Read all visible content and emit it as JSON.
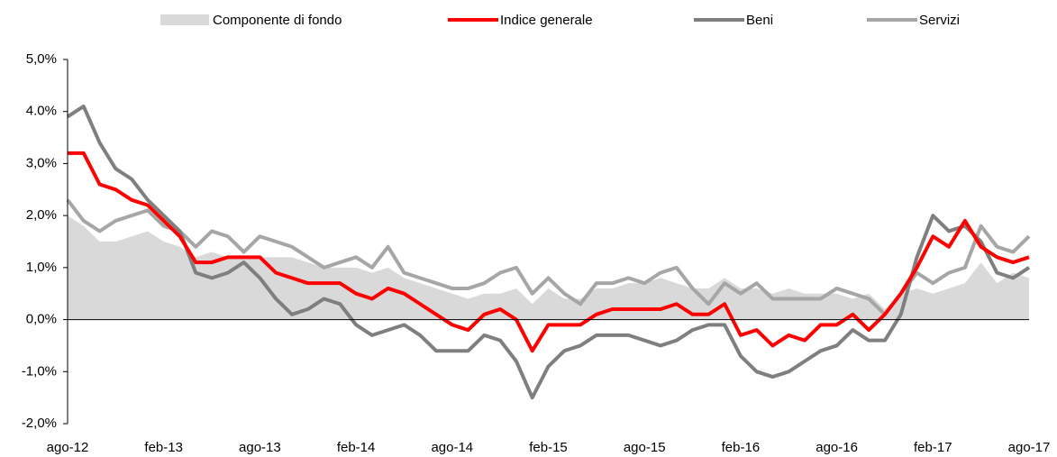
{
  "chart_data": {
    "type": "line",
    "categories": [
      "ago-12",
      null,
      null,
      null,
      null,
      null,
      "feb-13",
      null,
      null,
      null,
      null,
      null,
      "ago-13",
      null,
      null,
      null,
      null,
      null,
      "feb-14",
      null,
      null,
      null,
      null,
      null,
      "ago-14",
      null,
      null,
      null,
      null,
      null,
      "feb-15",
      null,
      null,
      null,
      null,
      null,
      "ago-15",
      null,
      null,
      null,
      null,
      null,
      "feb-16",
      null,
      null,
      null,
      null,
      null,
      "ago-16",
      null,
      null,
      null,
      null,
      null,
      "feb-17",
      null,
      null,
      null,
      null,
      null,
      "ago-17"
    ],
    "series": [
      {
        "name": "Componente di fondo",
        "color": "#d9d9d9",
        "kind": "area",
        "values": [
          2.0,
          1.8,
          1.5,
          1.5,
          1.6,
          1.7,
          1.5,
          1.4,
          1.2,
          1.3,
          1.2,
          1.2,
          1.2,
          1.2,
          1.2,
          1.1,
          1.0,
          1.0,
          1.0,
          0.9,
          1.0,
          0.8,
          0.7,
          0.6,
          0.5,
          0.4,
          0.5,
          0.5,
          0.6,
          0.3,
          0.6,
          0.4,
          0.4,
          0.6,
          0.6,
          0.7,
          0.7,
          0.8,
          0.7,
          0.6,
          0.6,
          0.8,
          0.6,
          0.6,
          0.5,
          0.6,
          0.5,
          0.5,
          0.5,
          0.4,
          0.5,
          0.2,
          0.5,
          0.6,
          0.5,
          0.6,
          0.7,
          1.1,
          0.7,
          0.9,
          0.8
        ]
      },
      {
        "name": "Indice generale",
        "color": "#ff0000",
        "kind": "line",
        "values": [
          3.2,
          3.2,
          2.6,
          2.5,
          2.3,
          2.2,
          1.9,
          1.6,
          1.1,
          1.1,
          1.2,
          1.2,
          1.2,
          0.9,
          0.8,
          0.7,
          0.7,
          0.7,
          0.5,
          0.4,
          0.6,
          0.5,
          0.3,
          0.1,
          -0.1,
          -0.2,
          0.1,
          0.2,
          0.0,
          -0.6,
          -0.1,
          -0.1,
          -0.1,
          0.1,
          0.2,
          0.2,
          0.2,
          0.2,
          0.3,
          0.1,
          0.1,
          0.3,
          -0.3,
          -0.2,
          -0.5,
          -0.3,
          -0.4,
          -0.1,
          -0.1,
          0.1,
          -0.2,
          0.1,
          0.5,
          1.0,
          1.6,
          1.4,
          1.9,
          1.4,
          1.2,
          1.1,
          1.2
        ]
      },
      {
        "name": "Beni",
        "color": "#7f7f7f",
        "kind": "line",
        "values": [
          3.9,
          4.1,
          3.4,
          2.9,
          2.7,
          2.3,
          2.0,
          1.7,
          0.9,
          0.8,
          0.9,
          1.1,
          0.8,
          0.4,
          0.1,
          0.2,
          0.4,
          0.3,
          -0.1,
          -0.3,
          -0.2,
          -0.1,
          -0.3,
          -0.6,
          -0.6,
          -0.6,
          -0.3,
          -0.4,
          -0.8,
          -1.5,
          -0.9,
          -0.6,
          -0.5,
          -0.3,
          -0.3,
          -0.3,
          -0.4,
          -0.5,
          -0.4,
          -0.2,
          -0.1,
          -0.1,
          -0.7,
          -1.0,
          -1.1,
          -1.0,
          -0.8,
          -0.6,
          -0.5,
          -0.2,
          -0.4,
          -0.4,
          0.1,
          1.2,
          2.0,
          1.7,
          1.8,
          1.5,
          0.9,
          0.8,
          1.0
        ]
      },
      {
        "name": "Servizi",
        "color": "#a6a6a6",
        "kind": "line",
        "values": [
          2.3,
          1.9,
          1.7,
          1.9,
          2.0,
          2.1,
          1.8,
          1.7,
          1.4,
          1.7,
          1.6,
          1.3,
          1.6,
          1.5,
          1.4,
          1.2,
          1.0,
          1.1,
          1.2,
          1.0,
          1.4,
          0.9,
          0.8,
          0.7,
          0.6,
          0.6,
          0.7,
          0.9,
          1.0,
          0.5,
          0.8,
          0.5,
          0.3,
          0.7,
          0.7,
          0.8,
          0.7,
          0.9,
          1.0,
          0.6,
          0.3,
          0.7,
          0.5,
          0.7,
          0.4,
          0.4,
          0.4,
          0.4,
          0.6,
          0.5,
          0.4,
          0.1,
          0.5,
          0.9,
          0.7,
          0.9,
          1.0,
          1.8,
          1.4,
          1.3,
          1.6
        ]
      }
    ],
    "ylim": [
      -2,
      5
    ],
    "yticks": [
      {
        "value": -2,
        "label": "-2,0%"
      },
      {
        "value": -1,
        "label": "-1,0%"
      },
      {
        "value": 0,
        "label": "0,0%"
      },
      {
        "value": 1,
        "label": "1,0%"
      },
      {
        "value": 2,
        "label": "2,0%"
      },
      {
        "value": 3,
        "label": "3,0%"
      },
      {
        "value": 4,
        "label": "4.0%"
      },
      {
        "value": 5,
        "label": "5,0%"
      }
    ],
    "legend": "top"
  }
}
